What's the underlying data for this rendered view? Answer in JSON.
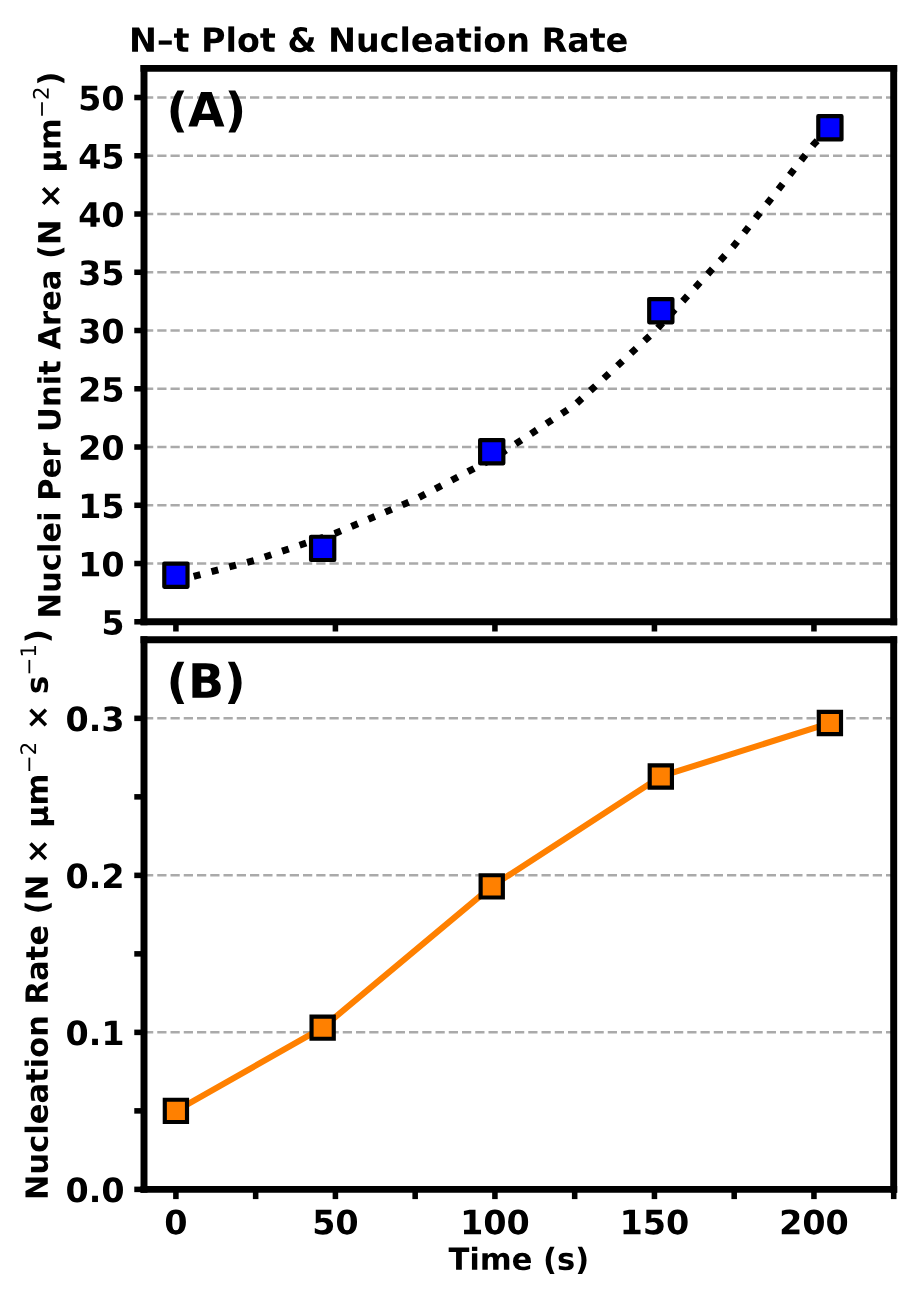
{
  "chart_data": [
    {
      "type": "scatter",
      "title": "N–t Plot & Nucleation Rate",
      "ylabel": "Nuclei Per Unit Area (N × µm$^{−2}$)",
      "annotations": [
        "(A)"
      ],
      "xlim": [
        -10,
        225
      ],
      "xticks": [
        {
          "value": 0,
          "label": null
        },
        {
          "value": 50,
          "label": null
        },
        {
          "value": 100,
          "label": null
        },
        {
          "value": 150,
          "label": null
        },
        {
          "value": 200,
          "label": null
        }
      ],
      "ylim": [
        5,
        52.5
      ],
      "yticks": [
        5,
        10,
        15,
        20,
        25,
        30,
        35,
        40,
        45,
        50
      ],
      "tick_labels": "y",
      "grid": "y",
      "series": [
        {
          "type": "line",
          "color": "#000000",
          "line_style": "dotted",
          "marker": "none",
          "x": [
            0,
            25,
            50,
            75,
            100,
            125,
            150,
            175,
            200,
            205
          ],
          "values": [
            8.5,
            10.3,
            12.6,
            15.5,
            19.1,
            23.6,
            29.9,
            37.3,
            46.0,
            47.4
          ]
        },
        {
          "color": "#0000ff",
          "marker": "square",
          "x": [
            0,
            46,
            99,
            152,
            205
          ],
          "values": [
            9.0,
            11.3,
            19.6,
            31.7,
            47.4
          ]
        }
      ]
    },
    {
      "type": "line",
      "xlabel": "Time (s)",
      "ylabel": "Nucleation Rate (N × µm$^{−2}$ × s$^{−1}$)",
      "annotations": [
        "(B)"
      ],
      "xlim": [
        -10,
        225
      ],
      "xticks": [
        0,
        {
          "value": 25,
          "label": null
        },
        50,
        {
          "value": 75,
          "label": null
        },
        100,
        {
          "value": 125,
          "label": null
        },
        150,
        {
          "value": 175,
          "label": null
        },
        200,
        {
          "value": 225,
          "label": null
        }
      ],
      "ylim": [
        0,
        0.35
      ],
      "yticks": [
        {
          "value": 0,
          "label": "0.0"
        },
        {
          "value": 0.05,
          "label": null
        },
        0.1,
        {
          "value": 0.15,
          "label": null
        },
        0.2,
        {
          "value": 0.25,
          "label": null
        },
        0.3
      ],
      "grid": "y",
      "series": [
        {
          "color": "#ff8000",
          "line_style": "solid",
          "marker": "square",
          "x": [
            0,
            46,
            99,
            152,
            205
          ],
          "values": [
            0.05,
            0.103,
            0.193,
            0.263,
            0.297
          ]
        }
      ]
    }
  ]
}
